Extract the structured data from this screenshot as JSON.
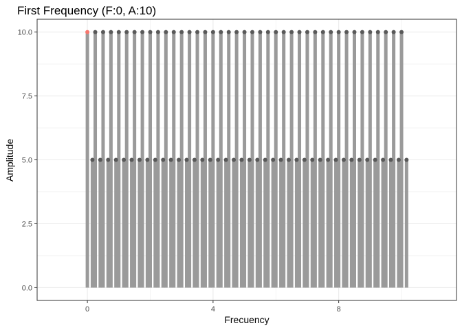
{
  "chart_data": {
    "type": "lollipop",
    "title": "First Frequency (F:0, A:10)",
    "xlabel": "Frecuency",
    "ylabel": "Amplitude",
    "x_ticks": [
      0,
      4,
      8
    ],
    "x_tick_labels": [
      "0",
      "4",
      "8"
    ],
    "y_ticks": [
      0,
      2.5,
      5,
      7.5,
      10
    ],
    "y_tick_labels": [
      "0.0",
      "2.5",
      "5.0",
      "7.5",
      "10.0"
    ],
    "xlim": [
      -1.6,
      11.75
    ],
    "ylim": [
      -0.5,
      10.5
    ],
    "grid": true,
    "colors": {
      "stem": "#9a9a9a",
      "point": "#595959",
      "highlight": "#f8766d",
      "panel_border": "#333333",
      "grid": "#ebebeb"
    },
    "highlight": {
      "x": 0,
      "y": 10
    },
    "series": [
      {
        "x": [
          0,
          0.25,
          0.5,
          0.75,
          1,
          1.25,
          1.5,
          1.75,
          2,
          2.25,
          2.5,
          2.75,
          3,
          3.25,
          3.5,
          3.75,
          4,
          4.25,
          4.5,
          4.75,
          5,
          5.25,
          5.5,
          5.75,
          6,
          6.25,
          6.5,
          6.75,
          7,
          7.25,
          7.5,
          7.75,
          8,
          8.25,
          8.5,
          8.75,
          9,
          9.25,
          9.5,
          9.75,
          10,
          0.16,
          0.41,
          0.66,
          0.91,
          1.16,
          1.41,
          1.66,
          1.91,
          2.16,
          2.41,
          2.66,
          2.91,
          3.16,
          3.41,
          3.66,
          3.91,
          4.16,
          4.41,
          4.66,
          4.91,
          5.16,
          5.41,
          5.66,
          5.91,
          6.16,
          6.41,
          6.66,
          6.91,
          7.16,
          7.41,
          7.66,
          7.91,
          8.16,
          8.41,
          8.66,
          8.91,
          9.16,
          9.41,
          9.66,
          9.91,
          10.16
        ],
        "y": [
          10,
          10,
          10,
          10,
          10,
          10,
          10,
          10,
          10,
          10,
          10,
          10,
          10,
          10,
          10,
          10,
          10,
          10,
          10,
          10,
          10,
          10,
          10,
          10,
          10,
          10,
          10,
          10,
          10,
          10,
          10,
          10,
          10,
          10,
          10,
          10,
          10,
          10,
          10,
          10,
          10,
          5,
          5,
          5,
          5,
          5,
          5,
          5,
          5,
          5,
          5,
          5,
          5,
          5,
          5,
          5,
          5,
          5,
          5,
          5,
          5,
          5,
          5,
          5,
          5,
          5,
          5,
          5,
          5,
          5,
          5,
          5,
          5,
          5,
          5,
          5,
          5,
          5,
          5,
          5,
          5,
          5
        ]
      }
    ]
  }
}
